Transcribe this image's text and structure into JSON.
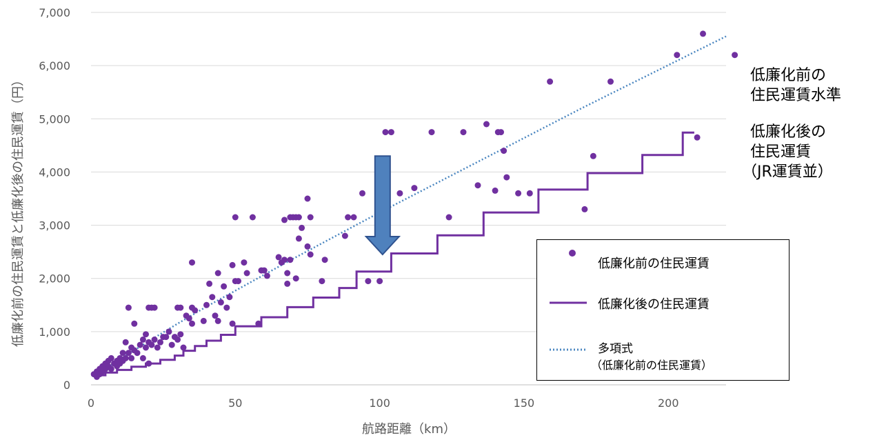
{
  "chart_data": {
    "type": "scatter",
    "xlabel": "航路距離（km）",
    "ylabel": "低廉化前の住民運賃と低廉化後の住民運賃（円）",
    "xlim": [
      0,
      220
    ],
    "ylim": [
      0,
      7000
    ],
    "x_ticks": [
      "0",
      "50",
      "100",
      "150",
      "200"
    ],
    "y_ticks": [
      "0",
      "1,000",
      "2,000",
      "3,000",
      "4,000",
      "5,000",
      "6,000",
      "7,000"
    ],
    "grid": "horizontal",
    "legend_position": "bottom-right",
    "colors": {
      "scatter": "#7030A0",
      "step": "#7030A0",
      "trend": "#4A86C0",
      "arrow": "#4F81BD",
      "arrow_border": "#2F528F"
    },
    "series": [
      {
        "name": "低廉化前の住民運賃",
        "kind": "scatter",
        "points": [
          [
            1,
            200
          ],
          [
            2,
            250
          ],
          [
            2,
            150
          ],
          [
            3,
            300
          ],
          [
            3,
            200
          ],
          [
            4,
            350
          ],
          [
            4,
            250
          ],
          [
            5,
            300
          ],
          [
            5,
            400
          ],
          [
            6,
            350
          ],
          [
            6,
            450
          ],
          [
            7,
            500
          ],
          [
            7,
            300
          ],
          [
            8,
            400
          ],
          [
            9,
            350
          ],
          [
            9,
            450
          ],
          [
            10,
            500
          ],
          [
            10,
            400
          ],
          [
            11,
            600
          ],
          [
            11,
            450
          ],
          [
            12,
            800
          ],
          [
            12,
            500
          ],
          [
            13,
            1450
          ],
          [
            13,
            600
          ],
          [
            14,
            700
          ],
          [
            14,
            500
          ],
          [
            15,
            1150
          ],
          [
            15,
            650
          ],
          [
            16,
            600
          ],
          [
            17,
            750
          ],
          [
            18,
            850
          ],
          [
            18,
            500
          ],
          [
            19,
            700
          ],
          [
            19,
            950
          ],
          [
            20,
            1450
          ],
          [
            20,
            800
          ],
          [
            20,
            400
          ],
          [
            21,
            1450
          ],
          [
            21,
            750
          ],
          [
            22,
            850
          ],
          [
            22,
            1450
          ],
          [
            23,
            700
          ],
          [
            24,
            800
          ],
          [
            25,
            900
          ],
          [
            26,
            900
          ],
          [
            27,
            1000
          ],
          [
            28,
            750
          ],
          [
            29,
            900
          ],
          [
            30,
            1450
          ],
          [
            30,
            850
          ],
          [
            31,
            1450
          ],
          [
            31,
            950
          ],
          [
            32,
            700
          ],
          [
            33,
            1300
          ],
          [
            34,
            1250
          ],
          [
            35,
            2300
          ],
          [
            35,
            1150
          ],
          [
            35,
            1450
          ],
          [
            36,
            1400
          ],
          [
            39,
            1200
          ],
          [
            40,
            1500
          ],
          [
            41,
            1900
          ],
          [
            42,
            1650
          ],
          [
            43,
            1300
          ],
          [
            44,
            2100
          ],
          [
            44,
            1200
          ],
          [
            45,
            1550
          ],
          [
            46,
            1850
          ],
          [
            47,
            1450
          ],
          [
            48,
            1650
          ],
          [
            49,
            2250
          ],
          [
            49,
            1150
          ],
          [
            50,
            3150
          ],
          [
            50,
            1950
          ],
          [
            51,
            1950
          ],
          [
            53,
            2300
          ],
          [
            54,
            2100
          ],
          [
            56,
            3150
          ],
          [
            58,
            1150
          ],
          [
            59,
            2150
          ],
          [
            60,
            2150
          ],
          [
            61,
            2050
          ],
          [
            65,
            2400
          ],
          [
            66,
            2300
          ],
          [
            67,
            3100
          ],
          [
            67,
            2350
          ],
          [
            68,
            2100
          ],
          [
            68,
            1900
          ],
          [
            69,
            3150
          ],
          [
            69,
            2350
          ],
          [
            70,
            3150
          ],
          [
            71,
            2000
          ],
          [
            71,
            3150
          ],
          [
            72,
            2750
          ],
          [
            72,
            3150
          ],
          [
            73,
            2950
          ],
          [
            75,
            3500
          ],
          [
            75,
            2600
          ],
          [
            76,
            3150
          ],
          [
            76,
            2450
          ],
          [
            80,
            1950
          ],
          [
            81,
            2350
          ],
          [
            88,
            2800
          ],
          [
            89,
            3150
          ],
          [
            91,
            3150
          ],
          [
            94,
            3600
          ],
          [
            96,
            1950
          ],
          [
            100,
            1950
          ],
          [
            102,
            4750
          ],
          [
            104,
            4750
          ],
          [
            107,
            3600
          ],
          [
            112,
            3700
          ],
          [
            118,
            4750
          ],
          [
            124,
            3150
          ],
          [
            129,
            4750
          ],
          [
            134,
            3750
          ],
          [
            137,
            4900
          ],
          [
            140,
            3650
          ],
          [
            141,
            4750
          ],
          [
            142,
            4750
          ],
          [
            143,
            4400
          ],
          [
            144,
            3900
          ],
          [
            148,
            3600
          ],
          [
            152,
            3600
          ],
          [
            159,
            5700
          ],
          [
            171,
            3300
          ],
          [
            174,
            4300
          ],
          [
            180,
            5700
          ],
          [
            203,
            6200
          ],
          [
            210,
            4650
          ],
          [
            212,
            6600
          ],
          [
            223,
            6200
          ]
        ]
      },
      {
        "name": "低廉化後の住民運賃",
        "kind": "step",
        "points": [
          [
            1,
            180
          ],
          [
            5,
            180
          ],
          [
            5,
            230
          ],
          [
            9,
            230
          ],
          [
            9,
            280
          ],
          [
            14,
            280
          ],
          [
            14,
            340
          ],
          [
            19,
            340
          ],
          [
            19,
            400
          ],
          [
            24,
            400
          ],
          [
            24,
            470
          ],
          [
            29,
            470
          ],
          [
            29,
            550
          ],
          [
            32,
            550
          ],
          [
            32,
            640
          ],
          [
            36,
            640
          ],
          [
            36,
            730
          ],
          [
            40,
            730
          ],
          [
            40,
            830
          ],
          [
            45,
            830
          ],
          [
            45,
            940
          ],
          [
            50,
            940
          ],
          [
            50,
            1100
          ],
          [
            59,
            1100
          ],
          [
            59,
            1270
          ],
          [
            68,
            1270
          ],
          [
            68,
            1460
          ],
          [
            77,
            1460
          ],
          [
            77,
            1640
          ],
          [
            86,
            1640
          ],
          [
            86,
            1820
          ],
          [
            92,
            1820
          ],
          [
            92,
            2130
          ],
          [
            104,
            2130
          ],
          [
            104,
            2470
          ],
          [
            120,
            2470
          ],
          [
            120,
            2810
          ],
          [
            136,
            2810
          ],
          [
            136,
            3240
          ],
          [
            155,
            3240
          ],
          [
            155,
            3670
          ],
          [
            172,
            3670
          ],
          [
            172,
            3980
          ],
          [
            191,
            3980
          ],
          [
            191,
            4320
          ],
          [
            205,
            4320
          ],
          [
            205,
            4740
          ],
          [
            209,
            4740
          ]
        ]
      },
      {
        "name": "多項式",
        "legend_sub": "（低廉化前の住民運賃）",
        "kind": "trend",
        "points": [
          [
            1,
            150
          ],
          [
            10,
            480
          ],
          [
            20,
            820
          ],
          [
            30,
            1150
          ],
          [
            40,
            1470
          ],
          [
            50,
            1770
          ],
          [
            60,
            2070
          ],
          [
            70,
            2370
          ],
          [
            80,
            2660
          ],
          [
            90,
            2950
          ],
          [
            100,
            3240
          ],
          [
            110,
            3520
          ],
          [
            120,
            3800
          ],
          [
            130,
            4080
          ],
          [
            140,
            4360
          ],
          [
            150,
            4640
          ],
          [
            160,
            4920
          ],
          [
            170,
            5200
          ],
          [
            180,
            5470
          ],
          [
            190,
            5740
          ],
          [
            200,
            6010
          ],
          [
            210,
            6280
          ],
          [
            220,
            6550
          ]
        ]
      }
    ],
    "annotations": {
      "before_label": [
        "低廉化前の",
        "住民運賃水準"
      ],
      "after_label": [
        "低廉化後の",
        "住民運賃",
        "（JR運賃並）"
      ],
      "arrow": {
        "from": 4300,
        "to": 2450,
        "x": 101
      }
    }
  }
}
